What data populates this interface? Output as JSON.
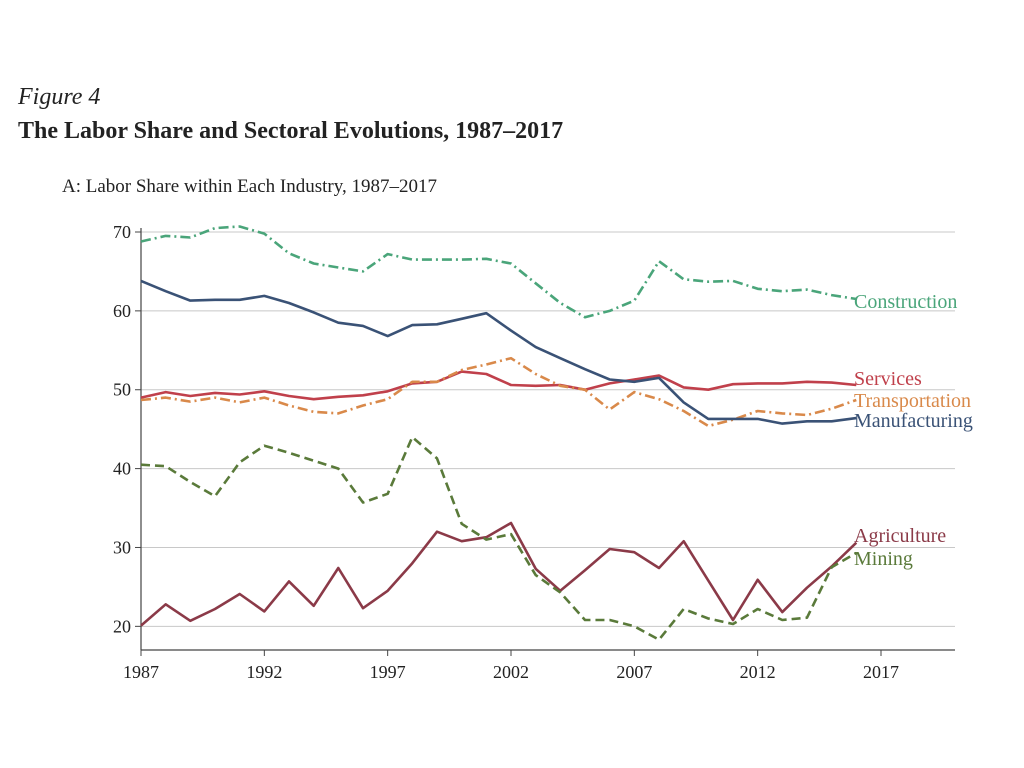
{
  "figure": {
    "label": "Figure 4",
    "title": "The Labor Share and Sectoral Evolutions, 1987–2017",
    "panel_title": "A: Labor Share within Each Industry, 1987–2017"
  },
  "chart_data": {
    "type": "line",
    "title": "A: Labor Share within Each Industry, 1987–2017",
    "xlabel": "",
    "ylabel": "",
    "xlim": [
      1987,
      2020
    ],
    "ylim": [
      17,
      70
    ],
    "xticks": [
      1987,
      1992,
      1997,
      2002,
      2007,
      2012,
      2017
    ],
    "yticks": [
      20,
      30,
      40,
      50,
      60,
      70
    ],
    "grid": "horizontal",
    "legend": "inline labels at right end of lines",
    "x": [
      1987,
      1988,
      1989,
      1990,
      1991,
      1992,
      1993,
      1994,
      1995,
      1996,
      1997,
      1998,
      1999,
      2000,
      2001,
      2002,
      2003,
      2004,
      2005,
      2006,
      2007,
      2008,
      2009,
      2010,
      2011,
      2012,
      2013,
      2014,
      2015,
      2016
    ],
    "series": [
      {
        "name": "Construction",
        "color": "#4aa57a",
        "dash": "dashdot",
        "values": [
          68.8,
          69.5,
          69.3,
          70.5,
          70.7,
          69.8,
          67.3,
          66.0,
          65.5,
          65.0,
          67.2,
          66.5,
          66.5,
          66.5,
          66.6,
          66.0,
          63.5,
          61.0,
          59.2,
          60.0,
          61.3,
          66.3,
          64.0,
          63.7,
          63.8,
          62.8,
          62.5,
          62.7,
          62.0,
          61.5
        ]
      },
      {
        "name": "Services",
        "color": "#c0404b",
        "dash": "solid",
        "values": [
          49.0,
          49.7,
          49.2,
          49.6,
          49.4,
          49.8,
          49.2,
          48.8,
          49.1,
          49.3,
          49.8,
          50.8,
          51.0,
          52.3,
          52.0,
          50.6,
          50.5,
          50.6,
          50.0,
          50.8,
          51.3,
          51.8,
          50.3,
          50.0,
          50.7,
          50.8,
          50.8,
          51.0,
          50.9,
          50.6
        ]
      },
      {
        "name": "Transportation",
        "color": "#d9894a",
        "dash": "dashdot",
        "values": [
          48.7,
          49.0,
          48.5,
          49.0,
          48.4,
          49.0,
          48.0,
          47.2,
          47.0,
          48.0,
          48.8,
          51.0,
          51.0,
          52.5,
          53.2,
          54.0,
          52.0,
          50.5,
          50.0,
          47.5,
          49.7,
          48.8,
          47.3,
          45.4,
          46.2,
          47.3,
          47.0,
          46.8,
          47.6,
          48.7
        ]
      },
      {
        "name": "Manufacturing",
        "color": "#3a5276",
        "dash": "solid",
        "values": [
          63.8,
          62.5,
          61.3,
          61.4,
          61.4,
          61.9,
          61.0,
          59.8,
          58.5,
          58.1,
          56.8,
          58.2,
          58.3,
          59.0,
          59.7,
          57.5,
          55.4,
          54.0,
          52.6,
          51.3,
          51.0,
          51.5,
          48.4,
          46.3,
          46.3,
          46.3,
          45.7,
          46.0,
          46.0,
          46.4
        ]
      },
      {
        "name": "Agriculture",
        "color": "#8b3a48",
        "dash": "solid",
        "values": [
          20.1,
          22.8,
          20.7,
          22.2,
          24.1,
          21.9,
          25.7,
          22.6,
          27.4,
          22.3,
          24.5,
          28.0,
          32.0,
          30.8,
          31.3,
          33.1,
          27.3,
          24.5,
          27.1,
          29.8,
          29.4,
          27.4,
          30.8,
          25.8,
          20.8,
          25.9,
          21.8,
          24.9,
          27.6,
          30.6
        ]
      },
      {
        "name": "Mining",
        "color": "#5a7a3a",
        "dash": "dashed",
        "values": [
          40.5,
          40.3,
          38.3,
          36.5,
          40.8,
          42.9,
          42.0,
          41.0,
          40.0,
          35.7,
          36.8,
          44.0,
          41.3,
          33.0,
          31.0,
          31.7,
          26.5,
          24.3,
          20.8,
          20.8,
          20.0,
          18.3,
          22.2,
          21.0,
          20.3,
          22.2,
          20.8,
          21.1,
          27.5,
          29.3
        ]
      }
    ]
  }
}
